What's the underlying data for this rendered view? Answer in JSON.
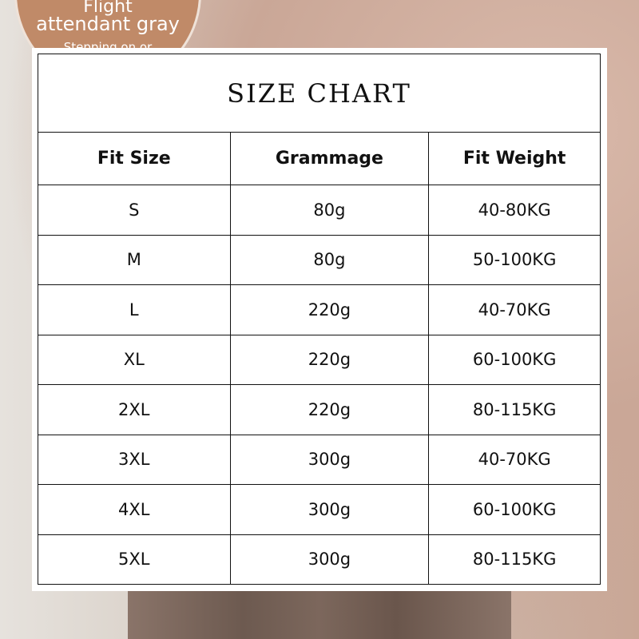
{
  "badge": {
    "line1": "Flight",
    "line2": "attendant gray",
    "line3": "Stepping on or",
    "color": "#c08a68"
  },
  "chart": {
    "title": "SIZE CHART",
    "headers": [
      "Fit Size",
      "Grammage",
      "Fit Weight"
    ],
    "rows": [
      [
        "S",
        "80g",
        "40-80KG"
      ],
      [
        "M",
        "80g",
        "50-100KG"
      ],
      [
        "L",
        "220g",
        "40-70KG"
      ],
      [
        "XL",
        "220g",
        "60-100KG"
      ],
      [
        "2XL",
        "220g",
        "80-115KG"
      ],
      [
        "3XL",
        "300g",
        "40-70KG"
      ],
      [
        "4XL",
        "300g",
        "60-100KG"
      ],
      [
        "5XL",
        "300g",
        "80-115KG"
      ]
    ]
  }
}
